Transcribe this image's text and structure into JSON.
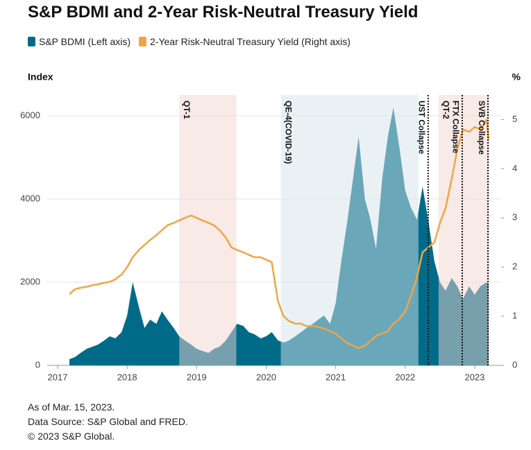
{
  "chart_data": {
    "type": "area-line",
    "title": "S&P BDMI and 2-Year Risk-Neutral Treasury Yield",
    "y_label": "Index",
    "y2_label": "%",
    "x": [
      2017.17,
      2017.25,
      2017.33,
      2017.42,
      2017.5,
      2017.58,
      2017.67,
      2017.75,
      2017.83,
      2017.92,
      2018.0,
      2018.08,
      2018.17,
      2018.25,
      2018.33,
      2018.42,
      2018.5,
      2018.58,
      2018.67,
      2018.75,
      2018.83,
      2018.92,
      2019.0,
      2019.08,
      2019.17,
      2019.25,
      2019.33,
      2019.42,
      2019.5,
      2019.58,
      2019.67,
      2019.75,
      2019.83,
      2019.92,
      2020.0,
      2020.08,
      2020.17,
      2020.25,
      2020.33,
      2020.42,
      2020.5,
      2020.58,
      2020.67,
      2020.75,
      2020.83,
      2020.92,
      2021.0,
      2021.08,
      2021.17,
      2021.25,
      2021.33,
      2021.42,
      2021.5,
      2021.58,
      2021.67,
      2021.75,
      2021.83,
      2021.92,
      2022.0,
      2022.08,
      2022.17,
      2022.25,
      2022.33,
      2022.42,
      2022.5,
      2022.58,
      2022.67,
      2022.75,
      2022.83,
      2022.92,
      2023.0,
      2023.08,
      2023.17,
      2023.2
    ],
    "series": [
      {
        "name": "S&P BDMI (Left axis)",
        "color": "#006b89",
        "kind": "area",
        "values": [
          150,
          200,
          300,
          400,
          450,
          500,
          600,
          700,
          650,
          800,
          1200,
          2000,
          1400,
          900,
          1100,
          1000,
          1300,
          1100,
          900,
          700,
          600,
          500,
          400,
          350,
          300,
          400,
          450,
          600,
          800,
          1000,
          950,
          800,
          750,
          650,
          700,
          800,
          600,
          550,
          600,
          700,
          800,
          900,
          1000,
          1100,
          1200,
          1000,
          1500,
          2500,
          3500,
          4500,
          5500,
          4000,
          3500,
          2800,
          4500,
          5500,
          6200,
          5200,
          4200,
          3800,
          3500,
          4300,
          3500,
          2500,
          2000,
          1800,
          2100,
          1900,
          1600,
          1900,
          1700,
          1900,
          2000,
          1950
        ]
      },
      {
        "name": "2-Year Risk-Neutral Treasury Yield (Right axis)",
        "color": "#f2a444",
        "kind": "line",
        "axis": "y2",
        "values": [
          1.45,
          1.55,
          1.58,
          1.6,
          1.63,
          1.65,
          1.68,
          1.7,
          1.75,
          1.85,
          2.0,
          2.2,
          2.35,
          2.45,
          2.55,
          2.65,
          2.75,
          2.85,
          2.9,
          2.95,
          3.0,
          3.05,
          3.0,
          2.95,
          2.9,
          2.85,
          2.75,
          2.6,
          2.4,
          2.35,
          2.3,
          2.25,
          2.2,
          2.2,
          2.15,
          2.1,
          1.3,
          1.0,
          0.9,
          0.85,
          0.85,
          0.8,
          0.8,
          0.78,
          0.75,
          0.7,
          0.65,
          0.55,
          0.45,
          0.4,
          0.35,
          0.4,
          0.5,
          0.6,
          0.65,
          0.7,
          0.85,
          0.95,
          1.1,
          1.4,
          1.8,
          2.3,
          2.4,
          2.5,
          2.9,
          3.2,
          3.8,
          4.4,
          4.8,
          4.75,
          4.85,
          4.8,
          5.0,
          4.6
        ]
      }
    ],
    "xlim": [
      2016.85,
      2023.38
    ],
    "xticks": [
      2017,
      2018,
      2019,
      2020,
      2021,
      2022,
      2023
    ],
    "ylim": [
      0,
      6500
    ],
    "yticks": [
      0,
      2000,
      4000,
      6000
    ],
    "y2lim": [
      0,
      5.5
    ],
    "y2ticks": [
      0,
      1,
      2,
      3,
      4,
      5
    ],
    "grid": true,
    "shaded_periods": [
      {
        "label": "QT-1",
        "start": 2018.75,
        "end": 2019.57,
        "color": "#f0d5cf"
      },
      {
        "label": "QE-4(COVID-19)",
        "start": 2020.21,
        "end": 2022.19,
        "color": "#d3e4ea"
      },
      {
        "label": "QT-2",
        "start": 2022.48,
        "end": 2023.21,
        "color": "#f0d5cf"
      }
    ],
    "events": [
      {
        "label": "UST Collapse",
        "x": 2022.33
      },
      {
        "label": "FTX Collapse",
        "x": 2022.82
      },
      {
        "label": "SVB Collapse",
        "x": 2023.19
      }
    ],
    "notes": [
      "As of Mar. 15, 2023.",
      "Data Source: S&P Global and FRED.",
      "© 2023 S&P Global."
    ]
  }
}
